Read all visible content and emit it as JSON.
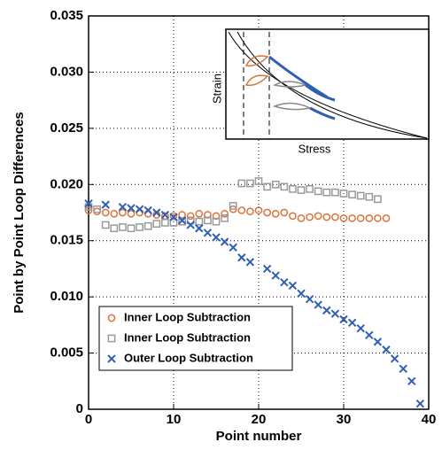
{
  "chart_data": {
    "type": "scatter",
    "xlabel": "Point number",
    "ylabel": "Point by Point Loop Differences",
    "xlim": [
      0,
      40
    ],
    "xticks": [
      0,
      10,
      20,
      30,
      40
    ],
    "ylim": [
      0,
      0.035
    ],
    "yticks": [
      0,
      0.005,
      {
        "value": 0.01,
        "label": "0.010"
      },
      0.015,
      {
        "value": 0.02,
        "label": "0.020"
      },
      0.025,
      {
        "value": 0.03,
        "label": "0.030"
      },
      0.035
    ],
    "grid": true,
    "legend": "lower left",
    "inset": {
      "xlabel": "Stress",
      "ylabel": "Strain"
    },
    "series": [
      {
        "name": "Inner Loop Subtraction",
        "color": "#d9733a",
        "marker": "circle",
        "x": [
          0,
          1,
          2,
          3,
          4,
          5,
          6,
          7,
          8,
          9,
          10,
          11,
          12,
          13,
          14,
          15,
          16,
          17,
          18,
          19,
          20,
          21,
          22,
          23,
          24,
          25,
          26,
          27,
          28,
          29,
          30,
          31,
          32,
          33,
          34,
          35
        ],
        "values": [
          0.0177,
          0.0176,
          0.0175,
          0.0174,
          0.0175,
          0.0174,
          0.0175,
          0.0174,
          0.0173,
          0.0172,
          0.0172,
          0.0173,
          0.0172,
          0.0174,
          0.0173,
          0.0172,
          0.0174,
          0.0178,
          0.0177,
          0.0176,
          0.0177,
          0.0175,
          0.0174,
          0.0175,
          0.0172,
          0.017,
          0.0171,
          0.0172,
          0.0171,
          0.0171,
          0.017,
          0.017,
          0.017,
          0.017,
          0.017,
          0.017
        ]
      },
      {
        "name": "Inner Loop Subtraction",
        "color": "#999999",
        "marker": "square",
        "x": [
          0,
          1,
          2,
          3,
          4,
          5,
          6,
          7,
          8,
          9,
          10,
          11,
          12,
          13,
          14,
          15,
          16,
          17,
          18,
          19,
          20,
          21,
          22,
          23,
          24,
          25,
          26,
          27,
          28,
          29,
          30,
          31,
          32,
          33,
          34
        ],
        "values": [
          0.018,
          0.0178,
          0.0164,
          0.0161,
          0.0162,
          0.0161,
          0.0162,
          0.0163,
          0.0165,
          0.0166,
          0.0166,
          0.0167,
          0.0168,
          0.0167,
          0.0168,
          0.0167,
          0.017,
          0.0181,
          0.0201,
          0.0201,
          0.0203,
          0.0198,
          0.02,
          0.0198,
          0.0196,
          0.0195,
          0.0196,
          0.0194,
          0.0193,
          0.0193,
          0.0192,
          0.0191,
          0.019,
          0.0189,
          0.0187
        ]
      },
      {
        "name": "Outer Loop Subtraction",
        "color": "#2f5fb3",
        "marker": "x",
        "x": [
          0,
          2,
          4,
          5,
          6,
          7,
          8,
          9,
          10,
          11,
          12,
          13,
          14,
          15,
          16,
          17,
          18,
          19,
          21,
          22,
          23,
          24,
          25,
          26,
          27,
          28,
          29,
          30,
          31,
          32,
          33,
          34,
          35,
          36,
          37,
          38,
          39
        ],
        "values": [
          0.0183,
          0.0182,
          0.018,
          0.0179,
          0.0178,
          0.0177,
          0.0175,
          0.0173,
          0.0171,
          0.0168,
          0.0164,
          0.0161,
          0.0157,
          0.0153,
          0.0149,
          0.0144,
          0.0135,
          0.0131,
          0.0125,
          0.0119,
          0.0113,
          0.011,
          0.0103,
          0.0098,
          0.0093,
          0.0088,
          0.0085,
          0.008,
          0.0077,
          0.0072,
          0.0066,
          0.006,
          0.0053,
          0.0045,
          0.0036,
          0.0025,
          0.0005
        ]
      }
    ]
  }
}
